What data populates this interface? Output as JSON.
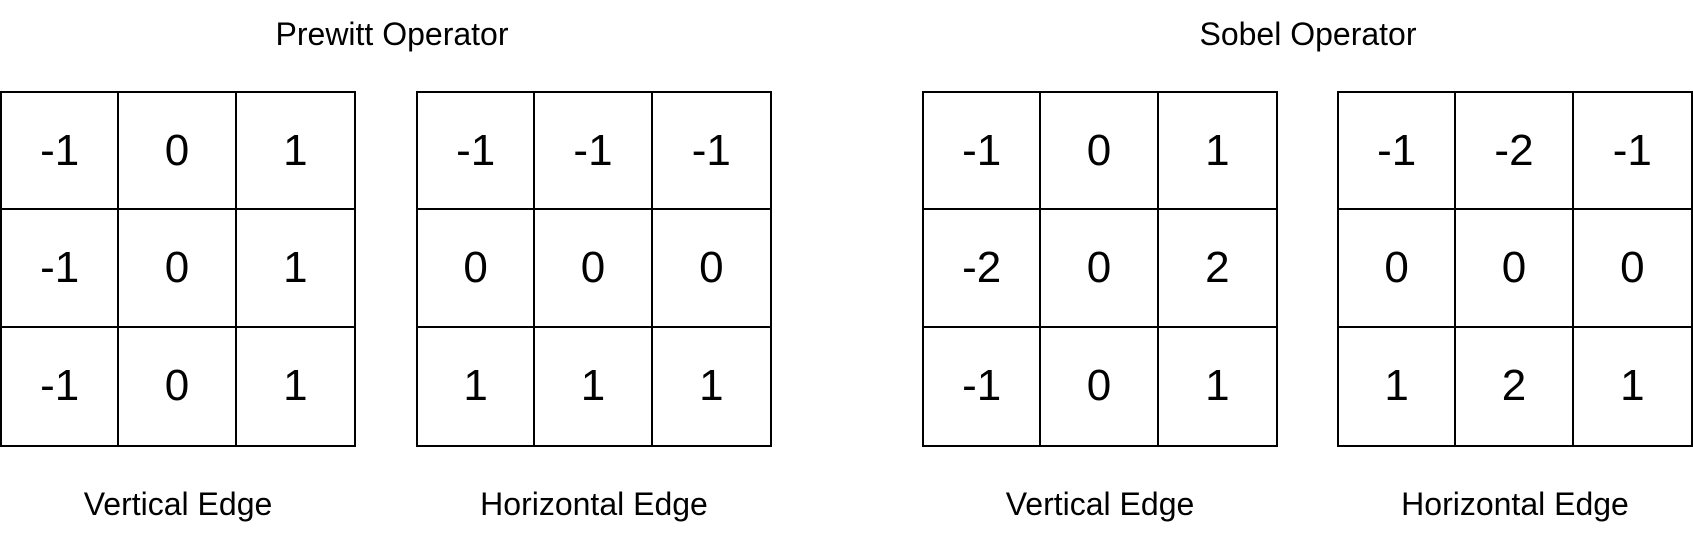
{
  "groups": [
    {
      "title": "Prewitt Operator",
      "kernels": [
        {
          "caption": "Vertical Edge",
          "cells": [
            [
              "-1",
              "0",
              "1"
            ],
            [
              "-1",
              "0",
              "1"
            ],
            [
              "-1",
              "0",
              "1"
            ]
          ]
        },
        {
          "caption": "Horizontal Edge",
          "cells": [
            [
              "-1",
              "-1",
              "-1"
            ],
            [
              "0",
              "0",
              "0"
            ],
            [
              "1",
              "1",
              "1"
            ]
          ]
        }
      ]
    },
    {
      "title": "Sobel Operator",
      "kernels": [
        {
          "caption": "Vertical Edge",
          "cells": [
            [
              "-1",
              "0",
              "1"
            ],
            [
              "-2",
              "0",
              "2"
            ],
            [
              "-1",
              "0",
              "1"
            ]
          ]
        },
        {
          "caption": "Horizontal Edge",
          "cells": [
            [
              "-1",
              "-2",
              "-1"
            ],
            [
              "0",
              "0",
              "0"
            ],
            [
              "1",
              "2",
              "1"
            ]
          ]
        }
      ]
    }
  ]
}
